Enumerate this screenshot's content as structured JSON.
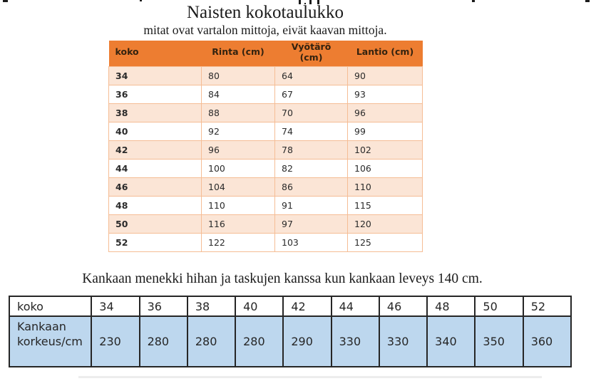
{
  "title": "Naisten kokotaulukko",
  "subtitle": "mitat ovat vartalon mittoja, eivät kaavan mittoja.",
  "size_table": {
    "headers": [
      "koko",
      "Rinta (cm)",
      "Vyötärö (cm)",
      "Lantio (cm)"
    ],
    "rows": [
      [
        "34",
        "80",
        "64",
        "90"
      ],
      [
        "36",
        "84",
        "67",
        "93"
      ],
      [
        "38",
        "88",
        "70",
        "96"
      ],
      [
        "40",
        "92",
        "74",
        "99"
      ],
      [
        "42",
        "96",
        "78",
        "102"
      ],
      [
        "44",
        "100",
        "82",
        "106"
      ],
      [
        "46",
        "104",
        "86",
        "110"
      ],
      [
        "48",
        "110",
        "91",
        "115"
      ],
      [
        "50",
        "116",
        "97",
        "120"
      ],
      [
        "52",
        "122",
        "103",
        "125"
      ]
    ]
  },
  "fabric_caption": "Kankaan menekki hihan ja taskujen kanssa kun kankaan leveys 140 cm.",
  "fabric_table": {
    "size_row": [
      "koko",
      "34",
      "36",
      "38",
      "40",
      "42",
      "44",
      "46",
      "48",
      "50",
      "52"
    ],
    "height_row": [
      "Kankaan korkeus/cm",
      "230",
      "280",
      "280",
      "280",
      "290",
      "330",
      "330",
      "340",
      "350",
      "360"
    ]
  },
  "colors": {
    "header_orange": "#ED7D31",
    "band_peach": "#FBE5D6",
    "size_table_border": "#F5BD95",
    "fabric_blue": "#BDD7EE",
    "fabric_border": "#262626"
  }
}
